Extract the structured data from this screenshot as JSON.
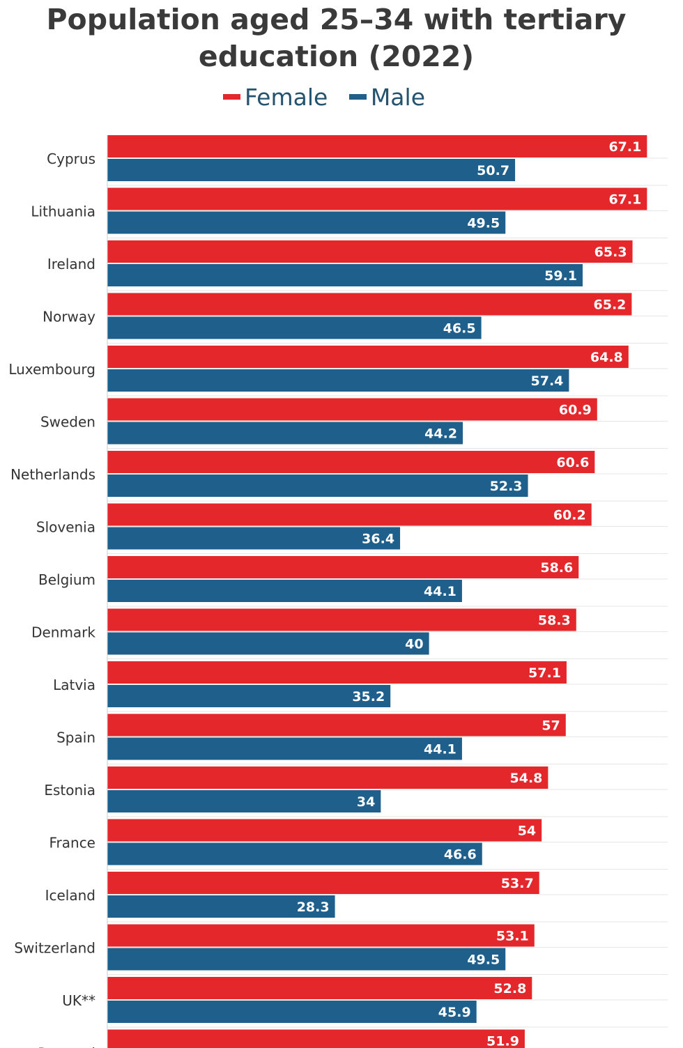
{
  "chart_data": {
    "type": "bar",
    "orientation": "horizontal",
    "title_lines": [
      "Population aged 25–34 with tertiary",
      "education (2022)"
    ],
    "categories": [
      "Cyprus",
      "Lithuania",
      "Ireland",
      "Norway",
      "Luxembourg",
      "Sweden",
      "Netherlands",
      "Slovenia",
      "Belgium",
      "Denmark",
      "Latvia",
      "Spain",
      "Estonia",
      "France",
      "Iceland",
      "Switzerland",
      "UK**",
      "Portugal"
    ],
    "series": [
      {
        "name": "Female",
        "color": "#e3272a",
        "values": [
          67.1,
          67.1,
          65.3,
          65.2,
          64.8,
          60.9,
          60.6,
          60.2,
          58.6,
          58.3,
          57.1,
          57,
          54.8,
          54,
          53.7,
          53.1,
          52.8,
          51.9
        ],
        "labels": [
          "67.1",
          "67.1",
          "65.3",
          "65.2",
          "64.8",
          "60.9",
          "60.6",
          "60.2",
          "58.6",
          "58.3",
          "57.1",
          "57",
          "54.8",
          "54",
          "53.7",
          "53.1",
          "52.8",
          "51.9"
        ]
      },
      {
        "name": "Male",
        "color": "#1f5f8b",
        "values": [
          50.7,
          49.5,
          59.1,
          46.5,
          57.4,
          44.2,
          52.3,
          36.4,
          44.1,
          40,
          35.2,
          44.1,
          34,
          46.6,
          28.3,
          49.5,
          45.9,
          null
        ],
        "labels": [
          "50.7",
          "49.5",
          "59.1",
          "46.5",
          "57.4",
          "44.2",
          "52.3",
          "36.4",
          "44.1",
          "40",
          "35.2",
          "44.1",
          "34",
          "46.6",
          "28.3",
          "49.5",
          "45.9",
          ""
        ]
      }
    ],
    "xlim": [
      0,
      85
    ],
    "grid": true,
    "legend": "top-center"
  }
}
